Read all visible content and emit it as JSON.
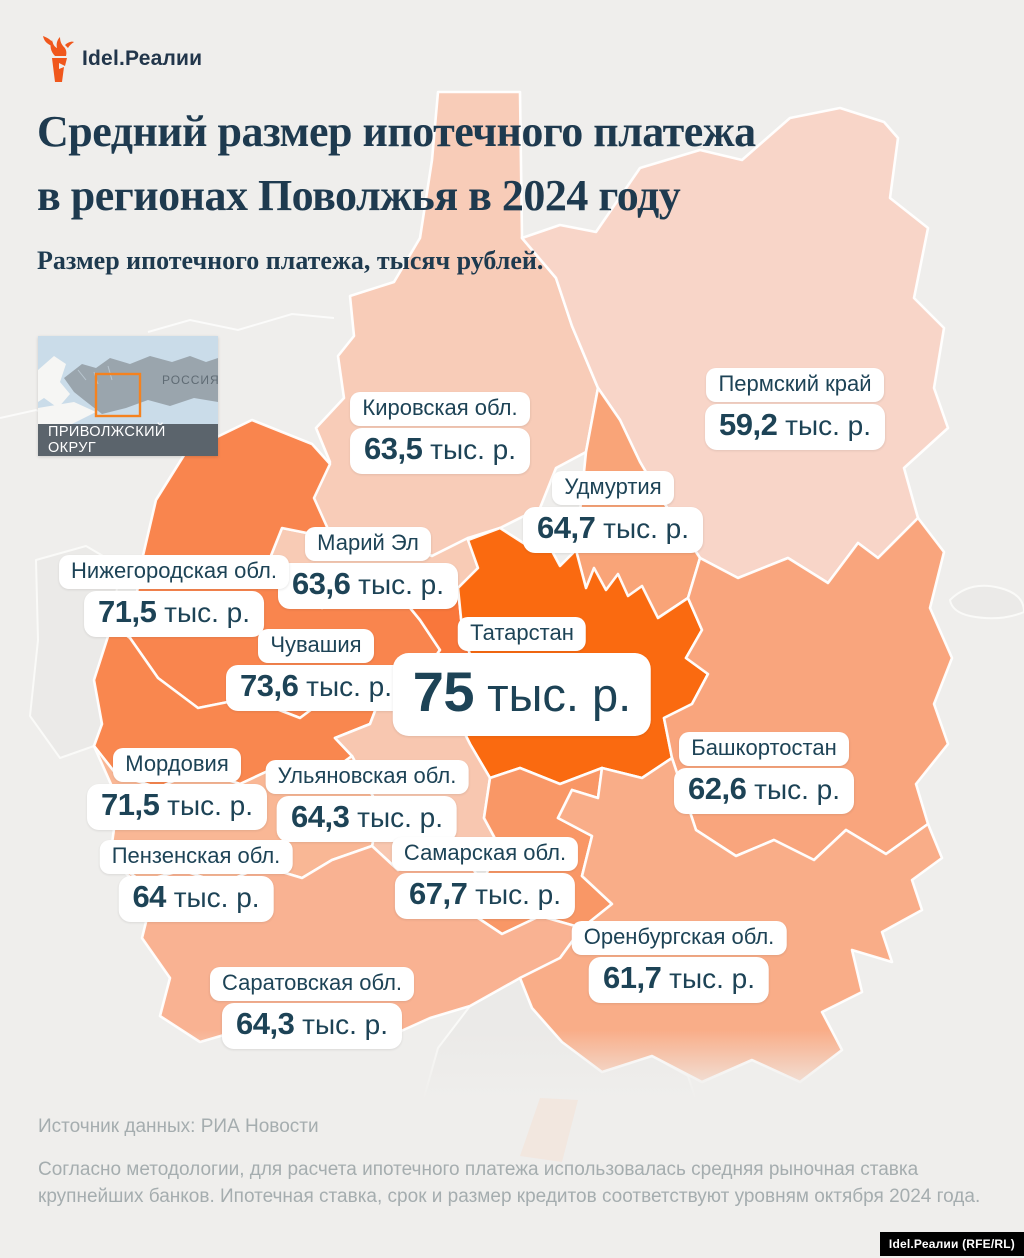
{
  "logo": {
    "brand": "Idel.Реалии"
  },
  "header": {
    "title_line1": "Средний размер ипотечного платежа",
    "title_line2": "в регионах Поволжья в 2024 году",
    "subtitle": "Размер ипотечного платежа, тысяч рублей."
  },
  "inset_map": {
    "country_label": "РОССИЯ",
    "caption": "ПРИВОЛЖСКИЙ ОКРУГ"
  },
  "chart_data": {
    "type": "choropleth-map",
    "title": "Средний размер ипотечного платежа в регионах Поволжья в 2024 году",
    "unit": "тыс. р.",
    "regions": [
      {
        "key": "perm",
        "name": "Пермский край",
        "value": 59.2,
        "value_text": "59,2",
        "color": "#f8d5c8"
      },
      {
        "key": "kirov",
        "name": "Кировская обл.",
        "value": 63.5,
        "value_text": "63,5",
        "color": "#f8ccb8"
      },
      {
        "key": "udmurtia",
        "name": "Удмуртия",
        "value": 64.7,
        "value_text": "64,7",
        "color": "#f9a478"
      },
      {
        "key": "mariel",
        "name": "Марий Эл",
        "value": 63.6,
        "value_text": "63,6",
        "color": "#f8cbb5"
      },
      {
        "key": "nizhny",
        "name": "Нижегородская обл.",
        "value": 71.5,
        "value_text": "71,5",
        "color": "#f9854e"
      },
      {
        "key": "chuvashia",
        "name": "Чувашия",
        "value": 73.6,
        "value_text": "73,6",
        "color": "#f9773b"
      },
      {
        "key": "tatarstan",
        "name": "Татарстан",
        "value": 75,
        "value_text": "75",
        "color": "#fa6a10",
        "emphasis": true
      },
      {
        "key": "mordovia",
        "name": "Мордовия",
        "value": 71.5,
        "value_text": "71,5",
        "color": "#f9874f"
      },
      {
        "key": "ulyanovsk",
        "name": "Ульяновская обл.",
        "value": 64.3,
        "value_text": "64,3",
        "color": "#f8c7b0"
      },
      {
        "key": "bashkortostan",
        "name": "Башкортостан",
        "value": 62.6,
        "value_text": "62,6",
        "color": "#f9a57d"
      },
      {
        "key": "penza",
        "name": "Пензенская обл.",
        "value": 64,
        "value_text": "64",
        "color": "#f9b795"
      },
      {
        "key": "samara",
        "name": "Самарская обл.",
        "value": 67.7,
        "value_text": "67,7",
        "color": "#f99766"
      },
      {
        "key": "saratov",
        "name": "Саратовская обл.",
        "value": 64.3,
        "value_text": "64,3",
        "color": "#f9b292"
      },
      {
        "key": "orenburg",
        "name": "Оренбургская обл.",
        "value": 61.7,
        "value_text": "61,7",
        "color": "#f9ad88"
      }
    ]
  },
  "footer": {
    "source": "Источник данных: РИА Новости",
    "methodology": "Согласно методологии, для расчета ипотечного платежа использовалась средняя рыночная ставка крупнейших банков. Ипотечная ставка, срок и размер кредитов соответствуют уровням октября 2024 года.",
    "credit": "Idel.Реалии (RFE/RL)"
  },
  "colors": {
    "background": "#efeeec",
    "title_navy": "#1e3a4f",
    "label_navy": "#1d4356",
    "accent_orange": "#fa6a10",
    "inset_sea": "#cadce9",
    "inset_land": "#9aa5ad",
    "inset_frame": "#f5821f"
  }
}
